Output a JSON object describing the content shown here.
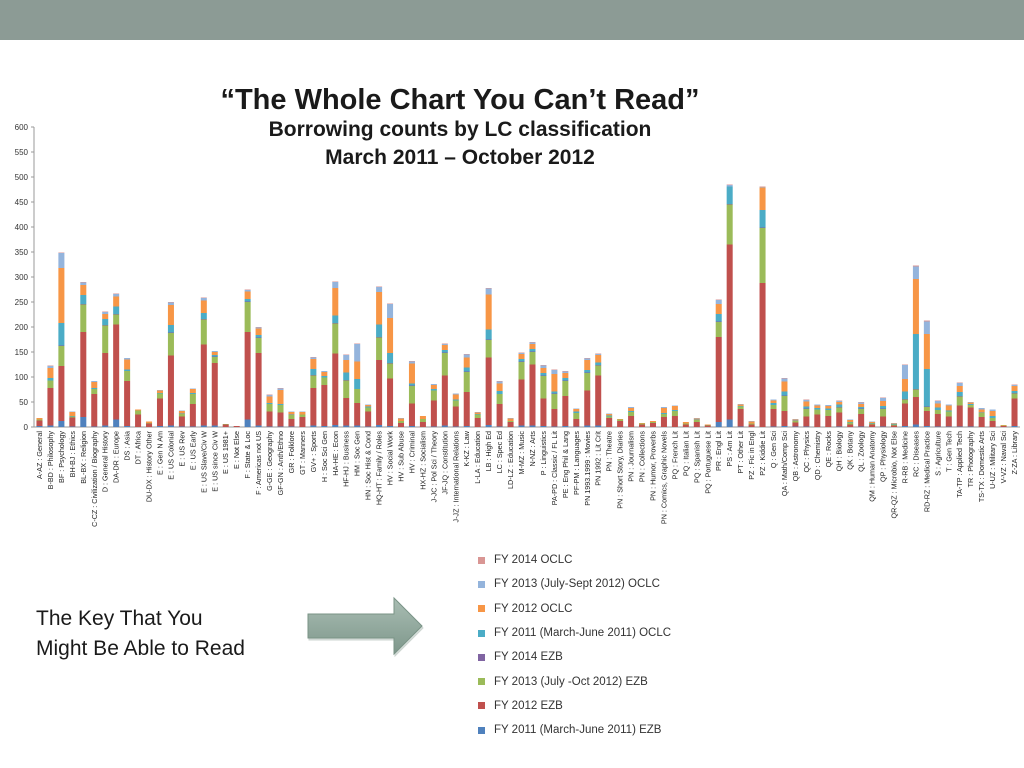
{
  "slide": {
    "title": "“The Whole Chart You Can’t Read”",
    "subtitle_line1": "Borrowing counts by LC classification",
    "subtitle_line2": "March 2011 – October 2012",
    "key_text_line1": "The Key That You",
    "key_text_line2": "Might Be Able to Read",
    "topbar_color": "#8c9b95",
    "arrow_color": "#8aa397"
  },
  "chart_data": {
    "type": "bar",
    "stacked": true,
    "title": "Borrowing counts by LC classification",
    "xlabel": "",
    "ylabel": "",
    "ylim": [
      0,
      600
    ],
    "yticks": [
      0,
      50,
      100,
      150,
      200,
      250,
      300,
      350,
      400,
      450,
      500,
      550,
      600
    ],
    "categories": [
      "A-AZ : General",
      "B-BD : Philosophy",
      "BF : Psychology",
      "BH-BJ : Ethics",
      "BL-BX : Religion",
      "C-CZ : Civilization / Biography",
      "D : General History",
      "DA-DR : Europe",
      "DS : Asia",
      "DT : Africa",
      "DU-DX : History Other",
      "E : Gen N Am",
      "E : US Colonial",
      "E : US Rev",
      "E : US Early",
      "E : US Slave/Civ W",
      "E : US since Civ W",
      "E : US 1981+",
      "E : Not Else",
      "F : State & Loc",
      "F : Americas not US",
      "G-GE : Geography",
      "GF-GN : Anth/Ethno",
      "GR : Folklore",
      "GT : Manners",
      "GV+ : Sports",
      "H : Soc Sci Gen",
      "HA-HE : Econ",
      "HF-HJ : Business",
      "HM : Soc Gen",
      "HN : Soc Hist & Cond",
      "HQ-HT : Family / Roles",
      "HV : Social Work",
      "HV : Sub Abuse",
      "HV : Criminal",
      "HX-HZ : Socialism",
      "J-JC : Pol Sci / Theory",
      "JF-JQ : Constitution",
      "J-JZ : International Relations",
      "K-KZ : Law",
      "L-LA : Education",
      "LB : High Ed",
      "LC : Spec Ed",
      "LD-LZ : Education",
      "M-MZ : Music",
      "N-NZ : Arts",
      "P : Linguistics",
      "PA-PD : Classic / FL Lit",
      "PE : Eng Phil & Lang",
      "PF-PM : Languages",
      "PN 1993.1999 : Movies",
      "PN 1992 : Lit Crit",
      "PN : Theatre",
      "PN : Short Story, Diaries",
      "PN : Journalism",
      "PN : Collections",
      "PN : Humor, Proverbs",
      "PN : Comics, Graphic Novels",
      "PQ : French Lit",
      "PQ : Italian Lit",
      "PQ : Spanish Lit",
      "PQ : Portuguese Lit",
      "PR : Engl Lit",
      "PS : Am Lit",
      "PT : Other Lit",
      "PZ : Fic in Engl",
      "PZ : Kiddie Lit",
      "Q : Gen Sci",
      "QA : Math/Comp Sci",
      "QB : Astronomy",
      "QC : Physics",
      "QD : Chemistry",
      "QE : Rocks",
      "QH : Biology",
      "QK : Botany",
      "QL : Zoology",
      "QM : Human Anatomy",
      "QP : Physiology",
      "QR-QZ : Microbio, Not Else",
      "R-RB : Medicine",
      "RC : Diseases",
      "RD-RZ : Medical Practice",
      "S : Agriculture",
      "T : Gen Tech",
      "TA-TP : Applied Tech",
      "TR : Photography",
      "TS-TX : Domestic Arts",
      "U-UZ : Military Sci",
      "V-VZ : Naval Sci",
      "Z-ZA : Library"
    ],
    "series": [
      {
        "name": "FY 2011 (March-June 2011) EZB",
        "color": "#4f81bd",
        "values": [
          2,
          3,
          12,
          1,
          20,
          1,
          3,
          15,
          2,
          0,
          0,
          2,
          3,
          1,
          1,
          3,
          3,
          0,
          0,
          15,
          3,
          1,
          1,
          1,
          0,
          3,
          2,
          4,
          3,
          3,
          1,
          4,
          2,
          0,
          2,
          0,
          1,
          3,
          1,
          2,
          0,
          4,
          1,
          0,
          3,
          3,
          2,
          1,
          2,
          1,
          3,
          3,
          0,
          0,
          0,
          0,
          0,
          0,
          0,
          0,
          0,
          0,
          10,
          15,
          1,
          0,
          0,
          1,
          2,
          1,
          1,
          0,
          0,
          1,
          0,
          1,
          0,
          1,
          0,
          2,
          5,
          2,
          1,
          1,
          1,
          1,
          0,
          0,
          0,
          2
        ]
      },
      {
        "name": "FY 2012 EZB",
        "color": "#c0504d",
        "values": [
          11,
          75,
          110,
          18,
          170,
          65,
          145,
          190,
          90,
          25,
          7,
          55,
          140,
          20,
          45,
          162,
          125,
          5,
          2,
          175,
          145,
          30,
          28,
          15,
          20,
          75,
          82,
          143,
          55,
          45,
          30,
          130,
          95,
          8,
          45,
          10,
          52,
          100,
          40,
          68,
          18,
          135,
          45,
          10,
          92,
          122,
          55,
          35,
          60,
          15,
          70,
          100,
          18,
          12,
          22,
          5,
          8,
          20,
          22,
          5,
          10,
          3,
          170,
          350,
          35,
          5,
          288,
          35,
          30,
          8,
          20,
          25,
          22,
          28,
          5,
          25,
          5,
          20,
          3,
          45,
          55,
          30,
          25,
          20,
          42,
          38,
          20,
          12,
          2,
          55
        ]
      },
      {
        "name": "FY 2013 (July -Oct 2012) EZB",
        "color": "#9bbb59",
        "values": [
          2,
          15,
          40,
          2,
          55,
          10,
          55,
          20,
          20,
          8,
          1,
          10,
          45,
          5,
          20,
          50,
          12,
          1,
          0,
          60,
          30,
          15,
          15,
          8,
          5,
          25,
          15,
          60,
          35,
          28,
          8,
          45,
          30,
          4,
          35,
          6,
          20,
          45,
          12,
          40,
          7,
          35,
          20,
          2,
          35,
          25,
          45,
          30,
          30,
          12,
          35,
          20,
          3,
          3,
          8,
          2,
          2,
          6,
          10,
          2,
          4,
          1,
          30,
          80,
          5,
          2,
          110,
          8,
          30,
          3,
          15,
          10,
          12,
          10,
          4,
          10,
          2,
          15,
          2,
          8,
          15,
          8,
          8,
          10,
          18,
          5,
          8,
          6,
          1,
          10
        ]
      },
      {
        "name": "FY 2014 EZB",
        "color": "#8064a2",
        "values": [
          0,
          0,
          1,
          0,
          1,
          0,
          1,
          1,
          0,
          0,
          0,
          0,
          1,
          0,
          0,
          1,
          1,
          0,
          0,
          1,
          1,
          0,
          0,
          0,
          0,
          1,
          0,
          1,
          1,
          0,
          0,
          1,
          1,
          0,
          1,
          0,
          0,
          1,
          0,
          1,
          0,
          1,
          0,
          0,
          1,
          1,
          1,
          1,
          1,
          0,
          1,
          1,
          0,
          0,
          0,
          0,
          0,
          0,
          0,
          0,
          0,
          0,
          1,
          1,
          0,
          0,
          1,
          0,
          1,
          0,
          1,
          0,
          0,
          1,
          0,
          1,
          0,
          1,
          0,
          1,
          1,
          1,
          0,
          0,
          1,
          0,
          0,
          0,
          0,
          1
        ]
      },
      {
        "name": "FY 2011 (March-June 2011) OCLC",
        "color": "#4bacc6",
        "values": [
          0,
          5,
          45,
          1,
          18,
          2,
          12,
          15,
          3,
          0,
          0,
          1,
          15,
          1,
          2,
          12,
          3,
          0,
          0,
          5,
          5,
          2,
          2,
          1,
          0,
          12,
          3,
          15,
          15,
          20,
          2,
          25,
          20,
          0,
          4,
          0,
          3,
          5,
          2,
          8,
          1,
          20,
          6,
          0,
          5,
          5,
          5,
          4,
          5,
          3,
          5,
          5,
          2,
          0,
          2,
          0,
          0,
          2,
          2,
          0,
          1,
          0,
          15,
          35,
          1,
          0,
          35,
          4,
          8,
          1,
          4,
          3,
          3,
          5,
          1,
          3,
          1,
          5,
          1,
          15,
          110,
          75,
          5,
          2,
          8,
          2,
          1,
          4,
          0,
          4
        ]
      },
      {
        "name": "FY 2012 OCLC",
        "color": "#f79646",
        "values": [
          3,
          20,
          110,
          8,
          20,
          12,
          10,
          20,
          20,
          2,
          3,
          5,
          40,
          5,
          8,
          25,
          6,
          0,
          0,
          15,
          13,
          13,
          28,
          5,
          5,
          20,
          8,
          55,
          25,
          35,
          3,
          65,
          70,
          5,
          40,
          6,
          8,
          10,
          10,
          20,
          3,
          70,
          15,
          5,
          10,
          10,
          10,
          35,
          10,
          5,
          20,
          15,
          3,
          1,
          6,
          1,
          2,
          10,
          8,
          3,
          2,
          1,
          20,
          0,
          3,
          4,
          45,
          5,
          20,
          2,
          10,
          5,
          5,
          5,
          4,
          6,
          2,
          10,
          1,
          25,
          110,
          70,
          8,
          10,
          12,
          3,
          6,
          10,
          1,
          10
        ]
      },
      {
        "name": "FY 2013 (July-Sept 2012) OCLC",
        "color": "#94b4dc",
        "values": [
          0,
          4,
          30,
          1,
          5,
          2,
          4,
          5,
          3,
          0,
          0,
          1,
          5,
          1,
          1,
          5,
          2,
          0,
          0,
          3,
          2,
          3,
          3,
          1,
          1,
          3,
          2,
          12,
          10,
          35,
          1,
          10,
          28,
          1,
          4,
          0,
          2,
          2,
          2,
          6,
          1,
          12,
          4,
          1,
          2,
          3,
          5,
          8,
          3,
          1,
          3,
          2,
          1,
          0,
          2,
          0,
          0,
          2,
          1,
          0,
          1,
          0,
          8,
          3,
          1,
          1,
          1,
          2,
          6,
          1,
          3,
          2,
          2,
          2,
          1,
          3,
          1,
          6,
          1,
          28,
          25,
          25,
          5,
          2,
          6,
          1,
          3,
          3,
          0,
          2
        ]
      },
      {
        "name": "FY 2014 OCLC",
        "color": "#d99694",
        "values": [
          0,
          1,
          1,
          0,
          1,
          0,
          1,
          1,
          0,
          0,
          0,
          0,
          1,
          0,
          0,
          1,
          0,
          0,
          0,
          1,
          1,
          1,
          1,
          0,
          0,
          1,
          0,
          1,
          1,
          1,
          0,
          1,
          1,
          0,
          1,
          0,
          0,
          1,
          0,
          1,
          0,
          1,
          1,
          0,
          1,
          1,
          1,
          1,
          1,
          0,
          1,
          1,
          0,
          0,
          0,
          0,
          0,
          0,
          0,
          0,
          0,
          0,
          1,
          1,
          0,
          0,
          1,
          0,
          1,
          0,
          1,
          0,
          0,
          1,
          0,
          1,
          0,
          1,
          0,
          1,
          2,
          2,
          1,
          0,
          1,
          0,
          0,
          0,
          0,
          1
        ]
      }
    ],
    "legend_order": [
      "FY 2014 OCLC",
      "FY 2013 (July-Sept 2012) OCLC",
      "FY 2012 OCLC",
      "FY 2011 (March-June 2011) OCLC",
      "FY 2014 EZB",
      "FY 2013 (July -Oct 2012) EZB",
      "FY 2012 EZB",
      "FY 2011 (March-June 2011) EZB"
    ],
    "legend_position": "bottom-center",
    "grid": false
  }
}
